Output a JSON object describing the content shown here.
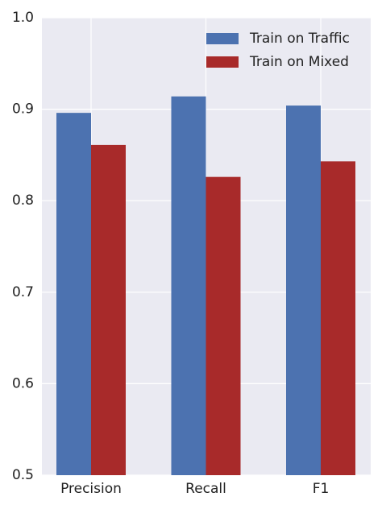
{
  "chart_data": {
    "type": "bar",
    "categories": [
      "Precision",
      "Recall",
      "F1"
    ],
    "series": [
      {
        "name": "Train on Traffic",
        "color": "#4c72b0",
        "values": [
          0.896,
          0.914,
          0.904
        ]
      },
      {
        "name": "Train on Mixed",
        "color": "#a82a2a",
        "values": [
          0.861,
          0.826,
          0.843
        ]
      }
    ],
    "ylim": [
      0.5,
      1.0
    ],
    "yticks": [
      0.5,
      0.6,
      0.7,
      0.8,
      0.9,
      {
        "value": 1.0,
        "label": "1.0"
      }
    ],
    "grid": true,
    "legend": "upper right"
  }
}
